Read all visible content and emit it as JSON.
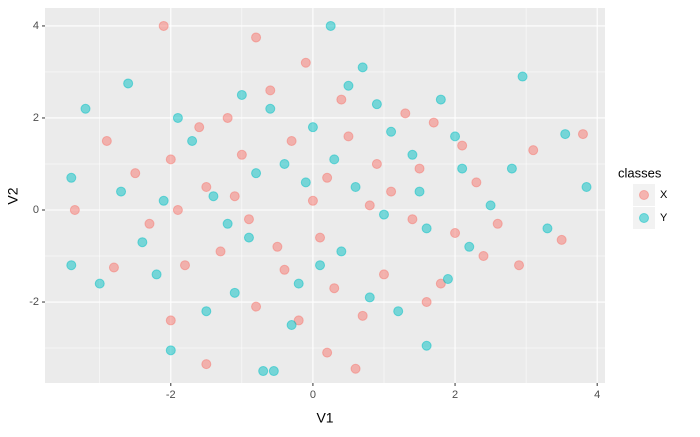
{
  "chart_data": {
    "type": "scatter",
    "x_label": "V1",
    "y_label": "V2",
    "xlim": [
      -3.77,
      4.11
    ],
    "ylim": [
      -3.76,
      4.39
    ],
    "xticks": [
      -2,
      0,
      2,
      4
    ],
    "yticks": [
      -2,
      0,
      2,
      4
    ],
    "x_minor_breaks": [
      -3,
      -1,
      1,
      3
    ],
    "y_minor_breaks": [
      -3,
      -1,
      1,
      3
    ],
    "grid": true,
    "legend": {
      "title": "classes",
      "position": "right"
    },
    "series": [
      {
        "name": "X",
        "color": "#F8766D",
        "x": [
          -2.1,
          3.8,
          -3.35,
          -2.8,
          0.6,
          -1.5,
          0.2,
          -2.0,
          3.5,
          -0.8,
          -1.5,
          -1.0,
          -0.5,
          0,
          0.5,
          1.0,
          1.5,
          2.0,
          -2.0,
          -1.8,
          -1.2,
          -0.8,
          -0.3,
          0.3,
          0.8,
          1.3,
          1.8,
          2.3,
          -2.3,
          -1.6,
          -0.9,
          -0.2,
          0.4,
          1.1,
          1.7,
          2.4,
          -1.9,
          -1.3,
          -0.6,
          0.1,
          0.7,
          1.4,
          2.1,
          -2.5,
          2.6,
          -1.1,
          0.9,
          -0.4,
          0.2,
          1.6,
          3.1,
          -2.9,
          2.9,
          -0.1
        ],
        "values": [
          4.0,
          1.65,
          0.0,
          -1.25,
          -3.45,
          -3.35,
          -3.1,
          -2.4,
          -0.65,
          3.75,
          0.5,
          1.2,
          -0.8,
          0.2,
          1.6,
          -1.4,
          0.9,
          -0.5,
          1.1,
          -1.2,
          2.0,
          -2.1,
          1.5,
          -1.7,
          0.1,
          2.1,
          -1.6,
          0.6,
          -0.3,
          1.8,
          -0.2,
          -2.4,
          2.4,
          0.4,
          1.9,
          -1.0,
          0.0,
          -0.9,
          2.6,
          -0.6,
          -2.3,
          -0.2,
          1.4,
          0.8,
          -0.3,
          0.3,
          1.0,
          -1.3,
          0.7,
          -2.0,
          1.3,
          1.5,
          -1.2,
          3.2
        ]
      },
      {
        "name": "Y",
        "color": "#00BFC4",
        "x": [
          0.25,
          -3.2,
          -2.6,
          -3.4,
          -3.4,
          3.85,
          -2.0,
          -0.7,
          -0.55,
          2.95,
          1.6,
          -3.0,
          3.55,
          -1.4,
          -0.9,
          -0.4,
          0.1,
          0.6,
          1.1,
          1.6,
          2.1,
          -2.1,
          -1.7,
          -1.1,
          -0.6,
          -0.1,
          0.4,
          0.9,
          1.4,
          1.9,
          2.5,
          -2.4,
          -1.5,
          -0.8,
          0.0,
          0.8,
          1.5,
          2.2,
          -1.9,
          -1.2,
          -0.3,
          0.5,
          1.2,
          2.0,
          -2.7,
          2.8,
          -0.2,
          0.3,
          1.0,
          -1.0,
          3.3,
          -2.2,
          1.8,
          0.7
        ],
        "values": [
          4.0,
          2.2,
          2.75,
          0.7,
          -1.2,
          0.5,
          -3.05,
          -3.5,
          -3.5,
          2.9,
          -2.95,
          -1.6,
          1.65,
          0.3,
          -0.6,
          1.0,
          -1.2,
          0.5,
          1.7,
          -0.4,
          0.9,
          0.2,
          1.5,
          -1.8,
          2.2,
          0.6,
          -0.9,
          2.3,
          1.2,
          -1.5,
          0.1,
          -0.7,
          -2.2,
          0.8,
          1.8,
          -1.9,
          0.4,
          -0.8,
          2.0,
          -0.3,
          -2.5,
          2.7,
          -2.2,
          1.6,
          0.4,
          0.9,
          -1.6,
          1.1,
          -0.1,
          2.5,
          -0.4,
          -1.4,
          2.4,
          3.1
        ]
      }
    ]
  }
}
